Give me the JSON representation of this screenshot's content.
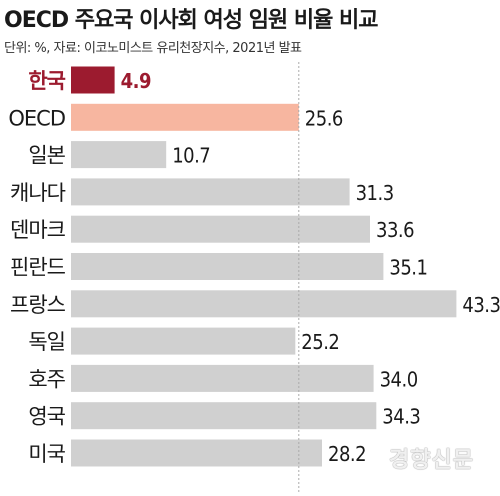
{
  "chart_data": {
    "type": "bar",
    "orientation": "horizontal",
    "title": "OECD 주요국 이사회 여성 임원 비율 비교",
    "subtitle": "단위: %, 자료: 이코노미스트 유리천장지수, 2021년 발표",
    "categories": [
      "한국",
      "OECD",
      "일본",
      "캐나다",
      "덴마크",
      "핀란드",
      "프랑스",
      "독일",
      "호주",
      "영국",
      "미국"
    ],
    "values": [
      4.9,
      25.6,
      10.7,
      31.3,
      33.6,
      35.1,
      43.3,
      25.2,
      34.0,
      34.3,
      28.2
    ],
    "value_labels": [
      "4.9",
      "25.6",
      "10.7",
      "31.3",
      "33.6",
      "35.1",
      "43.3",
      "25.2",
      "34.0",
      "34.3",
      "28.2"
    ],
    "reference_line": 25.6,
    "xlim": [
      0,
      45
    ],
    "grid": false,
    "legend": "none"
  },
  "colors": {
    "highlight": "#9c1b2f",
    "oecd": "#f7b6a0",
    "default": "#d0d0d0",
    "reference_line": "#aaaaaa"
  },
  "watermark": "경향신문"
}
